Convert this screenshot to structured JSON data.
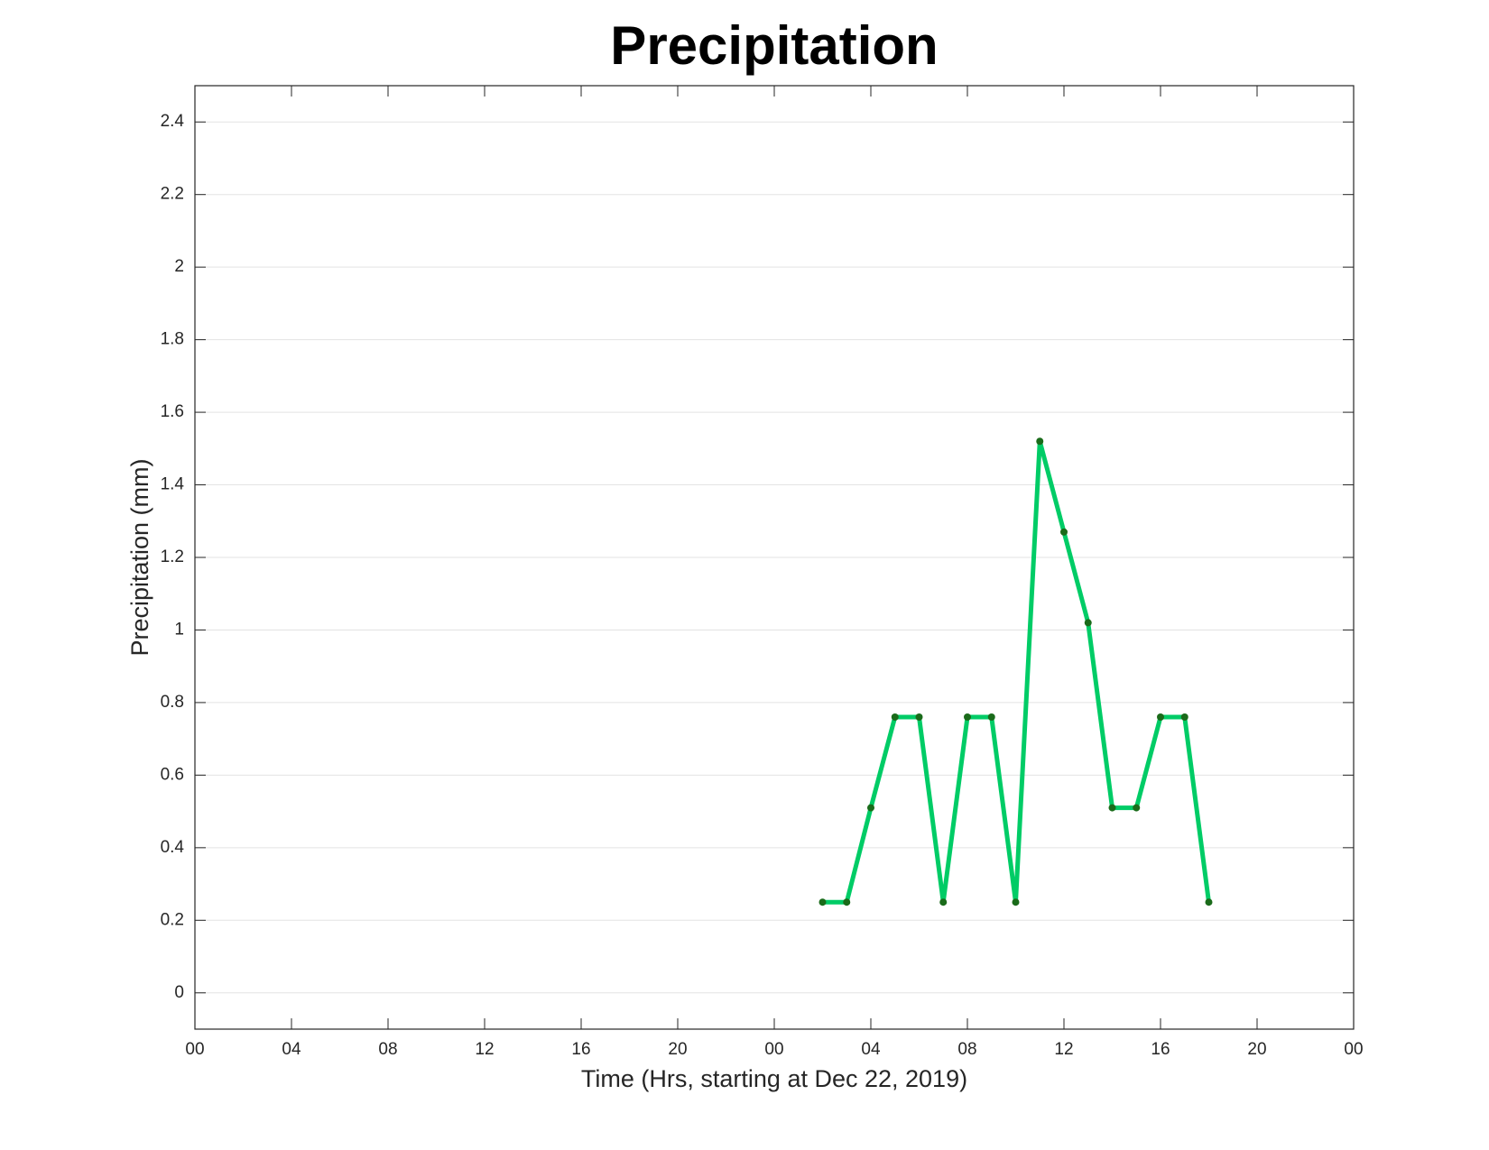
{
  "chart_data": {
    "type": "line",
    "title": "Precipitation",
    "x_label": "Time (Hrs, starting at Dec 22, 2019)",
    "y_label": "Precipitation (mm)",
    "x": [
      26,
      27,
      28,
      29,
      30,
      31,
      32,
      33,
      34,
      35,
      36,
      37,
      38,
      39,
      40,
      41,
      42
    ],
    "values": [
      0.25,
      0.25,
      0.51,
      0.76,
      0.76,
      0.25,
      0.76,
      0.76,
      0.25,
      1.52,
      1.27,
      1.02,
      0.51,
      0.51,
      0.76,
      0.76,
      0.25
    ],
    "color": "#00cc66",
    "marker_color": "#1a6b1a",
    "xlim": [
      0,
      48
    ],
    "xticks": [
      {
        "value": 0,
        "label": "00"
      },
      {
        "value": 4,
        "label": "04"
      },
      {
        "value": 8,
        "label": "08"
      },
      12,
      16,
      20,
      {
        "value": 24,
        "label": "00"
      },
      {
        "value": 28,
        "label": "04"
      },
      {
        "value": 32,
        "label": "08"
      },
      {
        "value": 36,
        "label": "12"
      },
      {
        "value": 40,
        "label": "16"
      },
      {
        "value": 44,
        "label": "20"
      },
      {
        "value": 48,
        "label": "00"
      }
    ],
    "ylim": [
      -0.1,
      2.5
    ],
    "yticks": [
      0,
      0.2,
      0.4,
      0.6,
      0.8,
      1,
      1.2,
      1.4,
      1.6,
      1.8,
      2,
      2.2,
      2.4
    ],
    "grid": true
  }
}
